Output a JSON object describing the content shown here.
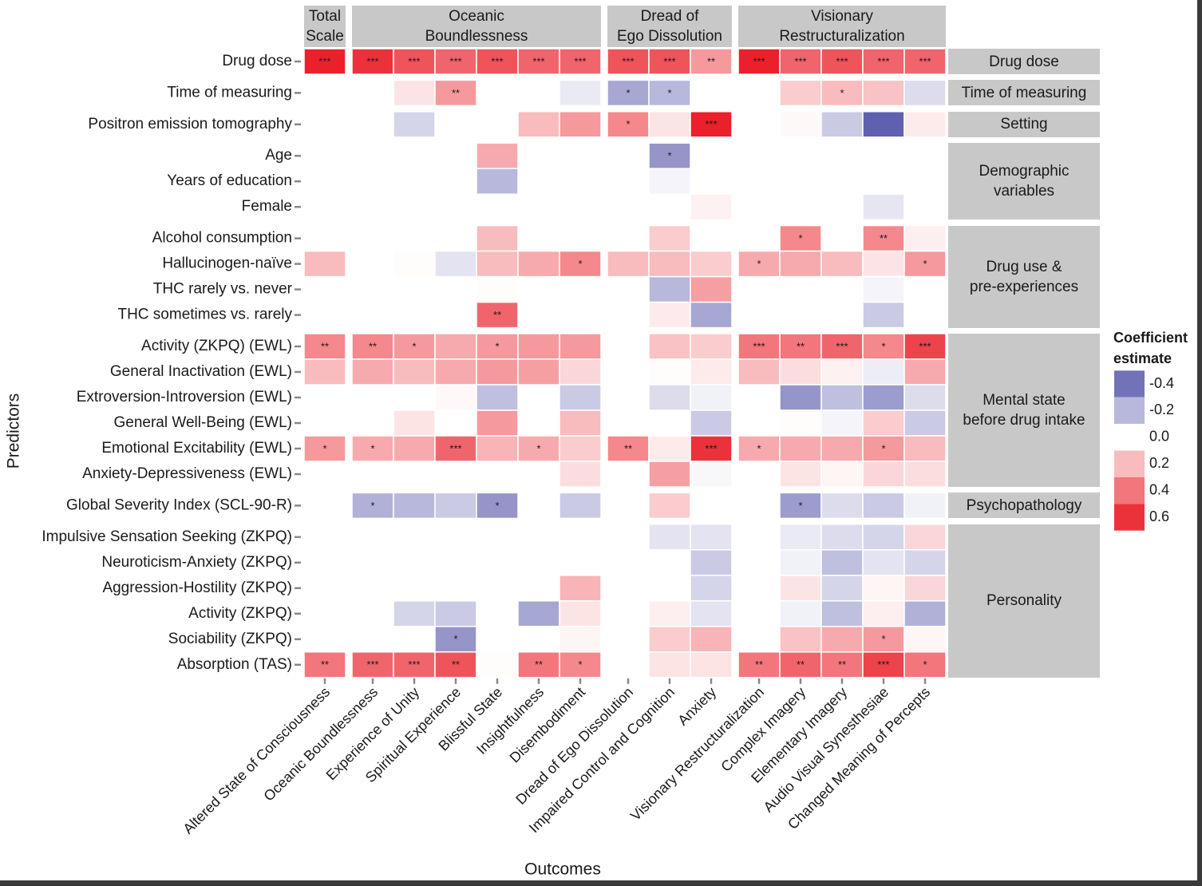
{
  "chart_data": {
    "type": "heatmap",
    "x_label": "Outcomes",
    "y_label": "Predictors",
    "column_groups": [
      {
        "label": "Total\nScale",
        "outcomes": [
          "Altered State of Consciousness"
        ]
      },
      {
        "label": "Oceanic\nBoundlessness",
        "outcomes": [
          "Oceanic Boundlessness",
          "Experience of Unity",
          "Spiritual Experience",
          "Blissful State",
          "Insightfulness",
          "Disembodiment"
        ]
      },
      {
        "label": "Dread of\nEgo Dissolution",
        "outcomes": [
          "Dread of Ego Dissolution",
          "Impaired Control and Cognition",
          "Anxiety"
        ]
      },
      {
        "label": "Visionary\nRestructuralization",
        "outcomes": [
          "Visionary Restructuralization",
          "Complex Imagery",
          "Elementary Imagery",
          "Audio Visual Synesthesiae",
          "Changed Meaning of Percepts"
        ]
      }
    ],
    "row_groups": [
      {
        "label": "Drug dose",
        "predictors": [
          "Drug dose"
        ]
      },
      {
        "label": "Time of measuring",
        "predictors": [
          "Time of measuring"
        ]
      },
      {
        "label": "Setting",
        "predictors": [
          "Positron emission tomography"
        ]
      },
      {
        "label": "Demographic\nvariables",
        "predictors": [
          "Age",
          "Years of education",
          "Female"
        ]
      },
      {
        "label": "Drug use &\npre-experiences",
        "predictors": [
          "Alcohol consumption",
          "Hallucinogen-naïve",
          "THC rarely vs. never",
          "THC sometimes vs. rarely"
        ]
      },
      {
        "label": "Mental state\nbefore drug intake",
        "predictors": [
          "Activity (ZKPQ) (EWL)",
          "General Inactivation (EWL)",
          "Extroversion-Introversion (EWL)",
          "General Well-Being (EWL)",
          "Emotional Excitability (EWL)",
          "Anxiety-Depressiveness (EWL)"
        ]
      },
      {
        "label": "Psychopathology",
        "predictors": [
          "Global Severity Index (SCL-90-R)"
        ]
      },
      {
        "label": "Personality",
        "predictors": [
          "Impulsive Sensation Seeking (ZKPQ)",
          "Neuroticism-Anxiety (ZKPQ)",
          "Aggression-Hostility (ZKPQ)",
          "Activity (ZKPQ)",
          "Sociability (ZKPQ)",
          "Absorption (TAS)"
        ]
      }
    ],
    "values": [
      [
        0.65,
        0.6,
        0.5,
        0.45,
        0.5,
        0.45,
        0.45,
        0.5,
        0.5,
        0.3,
        0.65,
        0.45,
        0.5,
        0.45,
        0.45
      ],
      [
        null,
        null,
        0.08,
        0.3,
        null,
        null,
        -0.06,
        -0.25,
        -0.2,
        null,
        null,
        0.15,
        0.2,
        0.18,
        -0.1
      ],
      [
        null,
        null,
        -0.12,
        null,
        null,
        0.2,
        0.3,
        0.35,
        0.08,
        0.65,
        null,
        0.02,
        -0.15,
        -0.45,
        0.06
      ],
      [
        null,
        null,
        null,
        null,
        0.25,
        null,
        null,
        null,
        -0.3,
        null,
        null,
        null,
        null,
        null,
        null
      ],
      [
        null,
        null,
        null,
        null,
        -0.2,
        null,
        null,
        null,
        -0.03,
        null,
        null,
        null,
        null,
        null,
        null
      ],
      [
        null,
        null,
        null,
        null,
        null,
        null,
        null,
        null,
        null,
        0.04,
        null,
        null,
        null,
        -0.07,
        null
      ],
      [
        null,
        null,
        null,
        null,
        0.2,
        null,
        null,
        null,
        0.15,
        null,
        null,
        0.35,
        null,
        0.35,
        0.05
      ],
      [
        0.2,
        null,
        0.01,
        -0.08,
        0.2,
        0.25,
        0.35,
        0.2,
        0.2,
        0.15,
        0.25,
        0.25,
        0.2,
        0.08,
        0.3
      ],
      [
        null,
        null,
        null,
        null,
        0.01,
        null,
        null,
        null,
        -0.2,
        0.28,
        null,
        null,
        null,
        -0.03,
        null
      ],
      [
        null,
        null,
        null,
        null,
        0.45,
        null,
        null,
        null,
        0.06,
        -0.25,
        null,
        null,
        null,
        -0.15,
        null
      ],
      [
        0.35,
        0.35,
        0.3,
        0.25,
        0.3,
        0.3,
        0.3,
        null,
        0.18,
        0.15,
        0.4,
        0.4,
        0.45,
        0.35,
        0.55
      ],
      [
        0.2,
        0.25,
        0.2,
        0.25,
        0.3,
        0.28,
        0.12,
        null,
        0.01,
        0.06,
        0.2,
        0.1,
        0.04,
        -0.05,
        0.25
      ],
      [
        null,
        null,
        null,
        0.02,
        -0.18,
        null,
        -0.15,
        null,
        -0.1,
        -0.04,
        null,
        -0.3,
        -0.18,
        -0.28,
        -0.1
      ],
      [
        null,
        null,
        0.08,
        null,
        0.3,
        null,
        0.2,
        null,
        null,
        -0.15,
        null,
        0.01,
        -0.03,
        0.15,
        -0.15
      ],
      [
        0.3,
        0.25,
        0.25,
        0.45,
        0.22,
        0.25,
        0.15,
        0.35,
        0.06,
        0.6,
        0.25,
        0.25,
        0.25,
        0.3,
        0.2
      ],
      [
        null,
        null,
        null,
        null,
        null,
        null,
        0.1,
        null,
        0.28,
        -0.02,
        null,
        0.08,
        0.03,
        0.12,
        0.1
      ],
      [
        null,
        -0.22,
        -0.2,
        -0.15,
        -0.3,
        null,
        -0.15,
        null,
        0.15,
        null,
        null,
        -0.28,
        -0.1,
        -0.15,
        -0.04
      ],
      [
        null,
        null,
        null,
        null,
        null,
        null,
        null,
        null,
        -0.08,
        -0.08,
        null,
        -0.06,
        -0.1,
        -0.12,
        0.12
      ],
      [
        null,
        null,
        null,
        null,
        null,
        null,
        null,
        null,
        null,
        -0.15,
        null,
        -0.04,
        -0.18,
        -0.08,
        -0.12
      ],
      [
        null,
        null,
        null,
        null,
        null,
        null,
        0.22,
        null,
        null,
        -0.12,
        null,
        0.08,
        -0.12,
        0.03,
        0.12
      ],
      [
        null,
        null,
        -0.12,
        -0.15,
        null,
        -0.25,
        0.08,
        null,
        0.05,
        -0.08,
        null,
        -0.04,
        -0.18,
        0.05,
        -0.22
      ],
      [
        null,
        null,
        null,
        -0.3,
        null,
        null,
        0.03,
        null,
        0.15,
        0.22,
        null,
        0.18,
        0.25,
        0.3,
        0.03
      ],
      [
        0.4,
        0.45,
        0.45,
        0.5,
        0.01,
        0.4,
        0.35,
        null,
        0.08,
        0.08,
        0.4,
        0.45,
        0.4,
        0.55,
        0.4
      ]
    ],
    "stars": [
      [
        "***",
        "***",
        "***",
        "***",
        "***",
        "***",
        "***",
        "***",
        "***",
        "**",
        "***",
        "***",
        "***",
        "***",
        "***"
      ],
      [
        null,
        null,
        null,
        "**",
        null,
        null,
        null,
        "*",
        "*",
        null,
        null,
        null,
        "*",
        null,
        null
      ],
      [
        null,
        null,
        null,
        null,
        null,
        null,
        null,
        "*",
        null,
        "***",
        null,
        null,
        null,
        null,
        null
      ],
      [
        null,
        null,
        null,
        null,
        null,
        null,
        null,
        null,
        "*",
        null,
        null,
        null,
        null,
        null,
        null
      ],
      [
        null,
        null,
        null,
        null,
        null,
        null,
        null,
        null,
        null,
        null,
        null,
        null,
        null,
        null,
        null
      ],
      [
        null,
        null,
        null,
        null,
        null,
        null,
        null,
        null,
        null,
        null,
        null,
        null,
        null,
        null,
        null
      ],
      [
        null,
        null,
        null,
        null,
        null,
        null,
        null,
        null,
        null,
        null,
        null,
        "*",
        null,
        "**",
        null
      ],
      [
        null,
        null,
        null,
        null,
        null,
        null,
        "*",
        null,
        null,
        null,
        "*",
        null,
        null,
        null,
        "*"
      ],
      [
        null,
        null,
        null,
        null,
        null,
        null,
        null,
        null,
        null,
        null,
        null,
        null,
        null,
        null,
        null
      ],
      [
        null,
        null,
        null,
        null,
        "**",
        null,
        null,
        null,
        null,
        null,
        null,
        null,
        null,
        null,
        null
      ],
      [
        "**",
        "**",
        "*",
        null,
        "*",
        null,
        null,
        null,
        null,
        null,
        "***",
        "**",
        "***",
        "*",
        "***"
      ],
      [
        null,
        null,
        null,
        null,
        null,
        null,
        null,
        null,
        null,
        null,
        null,
        null,
        null,
        null,
        null
      ],
      [
        null,
        null,
        null,
        null,
        null,
        null,
        null,
        null,
        null,
        null,
        null,
        null,
        null,
        null,
        null
      ],
      [
        null,
        null,
        null,
        null,
        null,
        null,
        null,
        null,
        null,
        null,
        null,
        null,
        null,
        null,
        null
      ],
      [
        "*",
        "*",
        null,
        "***",
        null,
        "*",
        null,
        "**",
        null,
        "***",
        "*",
        null,
        null,
        "*",
        null
      ],
      [
        null,
        null,
        null,
        null,
        null,
        null,
        null,
        null,
        null,
        null,
        null,
        null,
        null,
        null,
        null
      ],
      [
        null,
        "*",
        null,
        null,
        "*",
        null,
        null,
        null,
        null,
        null,
        null,
        "*",
        null,
        null,
        null
      ],
      [
        null,
        null,
        null,
        null,
        null,
        null,
        null,
        null,
        null,
        null,
        null,
        null,
        null,
        null,
        null
      ],
      [
        null,
        null,
        null,
        null,
        null,
        null,
        null,
        null,
        null,
        null,
        null,
        null,
        null,
        null,
        null
      ],
      [
        null,
        null,
        null,
        null,
        null,
        null,
        null,
        null,
        null,
        null,
        null,
        null,
        null,
        null,
        null
      ],
      [
        null,
        null,
        null,
        null,
        null,
        null,
        null,
        null,
        null,
        null,
        null,
        null,
        null,
        null,
        null
      ],
      [
        null,
        null,
        null,
        "*",
        null,
        null,
        null,
        null,
        null,
        null,
        null,
        null,
        null,
        "*",
        null
      ],
      [
        "**",
        "***",
        "***",
        "**",
        null,
        "**",
        "*",
        null,
        null,
        null,
        "**",
        "**",
        "**",
        "***",
        "*"
      ]
    ],
    "zlim": [
      -0.45,
      0.7
    ],
    "colors": {
      "low": "#6060b0",
      "mid": "#ffffff",
      "high": "#e8101a"
    },
    "legend": {
      "title": "Coefficient\nestimate",
      "ticks": [
        -0.4,
        -0.2,
        {
          "value": 0,
          "label": "0.0"
        },
        0.2,
        0.4,
        0.6
      ]
    }
  }
}
